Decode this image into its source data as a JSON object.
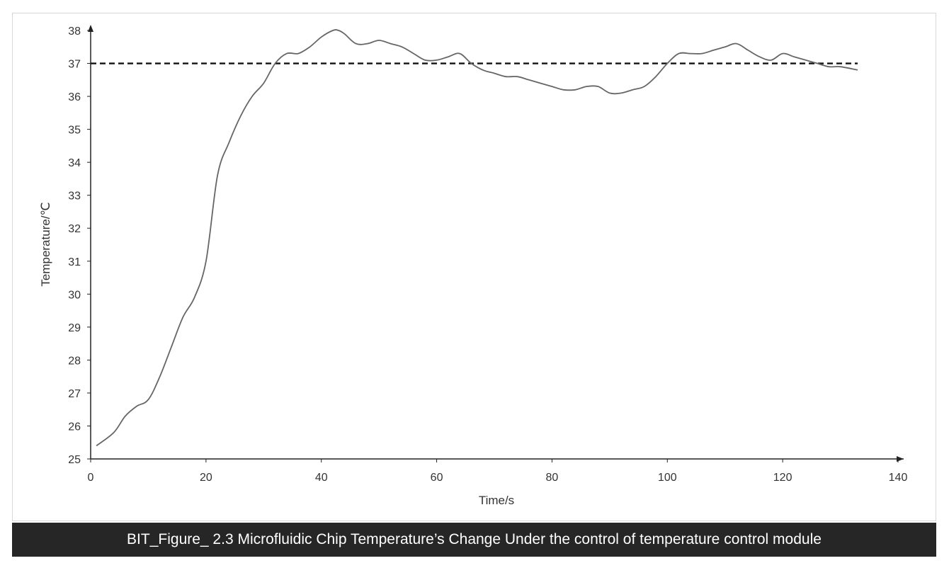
{
  "caption": "BIT_Figure_ 2.3 Microfluidic Chip Temperature’s Change Under the control of temperature control module",
  "chart_data": {
    "type": "line",
    "title": "",
    "xlabel": "Time/s",
    "ylabel": "Temperature/℃",
    "xlim": [
      0,
      140
    ],
    "ylim": [
      25,
      38
    ],
    "xticks": [
      0,
      20,
      40,
      60,
      80,
      100,
      120,
      140
    ],
    "yticks": [
      25,
      26,
      27,
      28,
      29,
      30,
      31,
      32,
      33,
      34,
      35,
      36,
      37,
      38
    ],
    "grid": false,
    "legend": "none",
    "series": [
      {
        "color": "#666666",
        "x": [
          1,
          4,
          6,
          8,
          10,
          12,
          14,
          16,
          18,
          20,
          22,
          24,
          26,
          28,
          30,
          32,
          34,
          36,
          38,
          40,
          42,
          43,
          44,
          46,
          48,
          50,
          52,
          54,
          56,
          58,
          60,
          62,
          64,
          66,
          68,
          70,
          72,
          74,
          76,
          78,
          80,
          82,
          84,
          86,
          88,
          90,
          92,
          94,
          96,
          98,
          100,
          102,
          104,
          106,
          108,
          110,
          112,
          114,
          116,
          118,
          120,
          122,
          124,
          126,
          128,
          130,
          133
        ],
        "values": [
          25.4,
          25.8,
          26.3,
          26.6,
          26.8,
          27.5,
          28.4,
          29.3,
          29.9,
          31.0,
          33.6,
          34.6,
          35.4,
          36.0,
          36.4,
          37.0,
          37.3,
          37.3,
          37.5,
          37.8,
          38.0,
          38.0,
          37.9,
          37.6,
          37.6,
          37.7,
          37.6,
          37.5,
          37.3,
          37.1,
          37.1,
          37.2,
          37.3,
          37.0,
          36.8,
          36.7,
          36.6,
          36.6,
          36.5,
          36.4,
          36.3,
          36.2,
          36.2,
          36.3,
          36.3,
          36.1,
          36.1,
          36.2,
          36.3,
          36.6,
          37.0,
          37.3,
          37.3,
          37.3,
          37.4,
          37.5,
          37.6,
          37.4,
          37.2,
          37.1,
          37.3,
          37.2,
          37.1,
          37.0,
          36.9,
          36.9,
          36.8
        ]
      }
    ],
    "reference_line": {
      "y": 37,
      "x_start": 0,
      "x_end": 133,
      "style": "dashed",
      "color": "#111111"
    }
  }
}
